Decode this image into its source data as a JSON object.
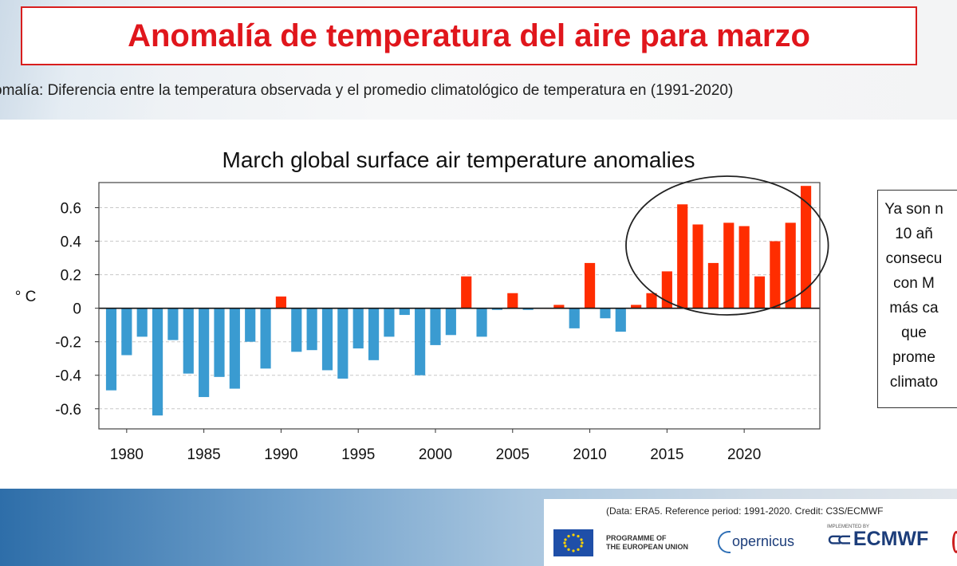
{
  "slide": {
    "title": "Anomalía de temperatura del aire para marzo",
    "subtitle": "omalía: Diferencia entre la temperatura observada y el promedio climatológico de temperatura en (1991-2020)",
    "side_note_lines": [
      "Ya son n",
      "10 añ",
      "consecu",
      "con M",
      "más ca",
      "que",
      "prome",
      "climato"
    ],
    "credit": "(Data: ERA5.  Reference period: 1991-2020.  Credit: C3S/ECMWF",
    "eu_label_line1": "PROGRAMME OF",
    "eu_label_line2": "THE EUROPEAN UNION",
    "copernicus_label": "opernicus",
    "ecmwf_label": "ECMWF",
    "ecmwf_small": "IMPLEMENTED BY"
  },
  "chart_data": {
    "type": "bar",
    "title": "March global surface air temperature anomalies",
    "ylabel": "° C",
    "xlabel": "",
    "ylim": [
      -0.72,
      0.75
    ],
    "yticks": [
      0.6,
      0.4,
      0.2,
      0,
      -0.2,
      -0.4,
      -0.6
    ],
    "ytick_labels": [
      "0.6",
      "0.4",
      "0.2",
      "0",
      "-0.2",
      "-0.4",
      "-0.6"
    ],
    "xticks": [
      1980,
      1985,
      1990,
      1995,
      2000,
      2005,
      2010,
      2015,
      2020
    ],
    "grid": "horizontal dashed",
    "positive_color": "#ff2d00",
    "negative_color": "#3a9bd1",
    "highlight": {
      "shape": "ellipse",
      "from": 2014,
      "to": 2024
    },
    "x": [
      1979,
      1980,
      1981,
      1982,
      1983,
      1984,
      1985,
      1986,
      1987,
      1988,
      1989,
      1990,
      1991,
      1992,
      1993,
      1994,
      1995,
      1996,
      1997,
      1998,
      1999,
      2000,
      2001,
      2002,
      2003,
      2004,
      2005,
      2006,
      2007,
      2008,
      2009,
      2010,
      2011,
      2012,
      2013,
      2014,
      2015,
      2016,
      2017,
      2018,
      2019,
      2020,
      2021,
      2022,
      2023,
      2024
    ],
    "values": [
      -0.49,
      -0.28,
      -0.17,
      -0.64,
      -0.19,
      -0.39,
      -0.53,
      -0.41,
      -0.48,
      -0.2,
      -0.36,
      0.07,
      -0.26,
      -0.25,
      -0.37,
      -0.42,
      -0.24,
      -0.31,
      -0.17,
      -0.04,
      -0.4,
      -0.22,
      -0.16,
      0.19,
      -0.17,
      -0.01,
      0.09,
      -0.01,
      0.0,
      0.02,
      -0.12,
      0.27,
      -0.06,
      -0.14,
      0.02,
      0.09,
      0.22,
      0.62,
      0.5,
      0.27,
      0.51,
      0.49,
      0.19,
      0.4,
      0.51,
      0.73
    ]
  }
}
